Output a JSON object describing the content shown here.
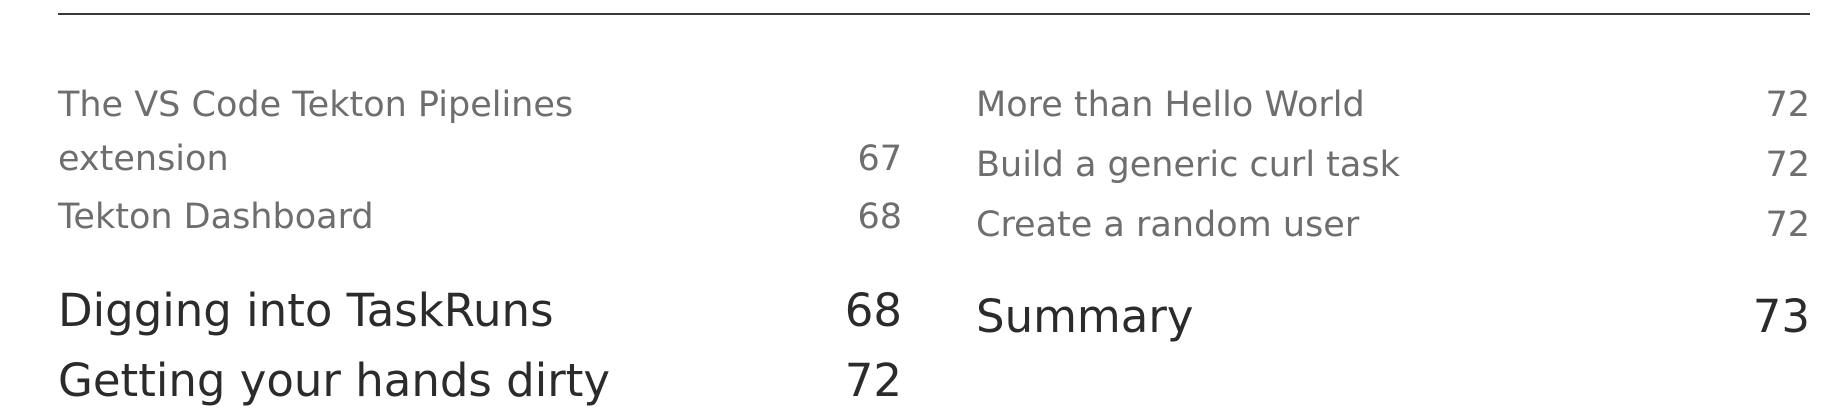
{
  "left_column": [
    {
      "title_lines": [
        "The VS Code Tekton Pipelines",
        "extension"
      ],
      "page": "67",
      "level": "sub"
    },
    {
      "title": "Tekton Dashboard",
      "page": "68",
      "level": "sub"
    },
    {
      "title": "Digging into TaskRuns",
      "page": "68",
      "level": "major"
    },
    {
      "title": "Getting your hands dirty",
      "page": "72",
      "level": "major"
    }
  ],
  "right_column": [
    {
      "title": "More than Hello World",
      "page": "72",
      "level": "sub"
    },
    {
      "title": "Build a generic curl task",
      "page": "72",
      "level": "sub"
    },
    {
      "title": "Create a random user",
      "page": "72",
      "level": "sub"
    },
    {
      "title": "Summary",
      "page": "73",
      "level": "major"
    }
  ]
}
